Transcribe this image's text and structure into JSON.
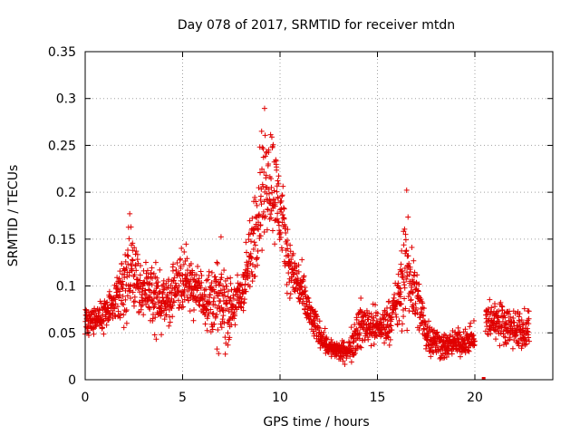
{
  "chart_data": {
    "type": "scatter",
    "title": "Day 078 of 2017, SRMTID for receiver mtdn",
    "xlabel": "GPS time / hours",
    "ylabel": "SRMTID / TECUs",
    "xlim": [
      0,
      24
    ],
    "ylim": [
      0,
      0.35
    ],
    "x_ticks": [
      0,
      5,
      10,
      15,
      20
    ],
    "x_tick_labels": [
      "0",
      "5",
      "10",
      "15",
      "20"
    ],
    "y_ticks": [
      0,
      0.05,
      0.1,
      0.15,
      0.2,
      0.25,
      0.3,
      0.35
    ],
    "y_tick_labels": [
      "0",
      "0.05",
      "0.1",
      "0.15",
      "0.2",
      "0.25",
      "0.3",
      "0.35"
    ],
    "grid": true,
    "marker": "+",
    "color": "#e00000",
    "series_trend": {
      "name": "SRMTID",
      "x": [
        0,
        0.5,
        1,
        1.5,
        2,
        2.2,
        2.5,
        3,
        3.5,
        4,
        4.5,
        5,
        5.5,
        6,
        6.5,
        7,
        7.5,
        8,
        8.5,
        9,
        9.5,
        10,
        10.5,
        11,
        11.5,
        12,
        12.5,
        13,
        13.5,
        14,
        14.5,
        15,
        15.5,
        16,
        16.5,
        17,
        17.5,
        18,
        18.5,
        19,
        19.5,
        20,
        20.5,
        21,
        21.5,
        22,
        22.5,
        22.8
      ],
      "y": [
        0.06,
        0.065,
        0.07,
        0.085,
        0.1,
        0.13,
        0.11,
        0.095,
        0.09,
        0.08,
        0.09,
        0.11,
        0.1,
        0.09,
        0.085,
        0.08,
        0.075,
        0.09,
        0.13,
        0.2,
        0.22,
        0.18,
        0.12,
        0.1,
        0.07,
        0.05,
        0.035,
        0.03,
        0.03,
        0.055,
        0.06,
        0.055,
        0.06,
        0.08,
        0.12,
        0.09,
        0.05,
        0.04,
        0.035,
        0.04,
        0.04,
        0.045,
        0.06,
        0.065,
        0.06,
        0.055,
        0.05,
        0.05
      ],
      "spread": [
        0.02,
        0.02,
        0.025,
        0.03,
        0.05,
        0.08,
        0.05,
        0.04,
        0.06,
        0.04,
        0.04,
        0.05,
        0.04,
        0.04,
        0.05,
        0.08,
        0.04,
        0.04,
        0.06,
        0.1,
        0.09,
        0.07,
        0.04,
        0.04,
        0.03,
        0.02,
        0.015,
        0.015,
        0.015,
        0.04,
        0.03,
        0.03,
        0.03,
        0.04,
        0.1,
        0.05,
        0.03,
        0.025,
        0.02,
        0.02,
        0.02,
        0.02,
        0.03,
        0.03,
        0.03,
        0.03,
        0.03,
        0.03
      ]
    },
    "isolated_points": [
      {
        "x": 20.45,
        "y": 0.0
      }
    ]
  }
}
